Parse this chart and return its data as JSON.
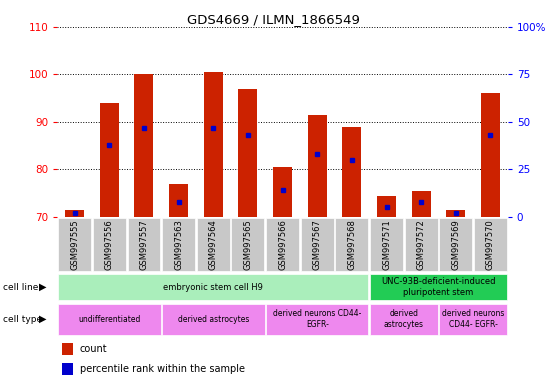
{
  "title": "GDS4669 / ILMN_1866549",
  "samples": [
    "GSM997555",
    "GSM997556",
    "GSM997557",
    "GSM997563",
    "GSM997564",
    "GSM997565",
    "GSM997566",
    "GSM997567",
    "GSM997568",
    "GSM997571",
    "GSM997572",
    "GSM997569",
    "GSM997570"
  ],
  "count_values": [
    71.5,
    94.0,
    100.0,
    77.0,
    100.5,
    97.0,
    80.5,
    91.5,
    89.0,
    74.5,
    75.5,
    71.5,
    96.0
  ],
  "percentile_values": [
    2.0,
    38.0,
    47.0,
    8.0,
    47.0,
    43.0,
    14.0,
    33.0,
    30.0,
    5.0,
    8.0,
    2.0,
    43.0
  ],
  "ylim_left": [
    70,
    110
  ],
  "ylim_right": [
    0,
    100
  ],
  "yticks_left": [
    70,
    80,
    90,
    100,
    110
  ],
  "yticks_right": [
    0,
    25,
    50,
    75,
    100
  ],
  "ytick_labels_right": [
    "0",
    "25",
    "50",
    "75",
    "100%"
  ],
  "bar_color": "#cc2200",
  "dot_color": "#0000cc",
  "bar_width": 0.55,
  "cell_line_groups": [
    {
      "label": "embryonic stem cell H9",
      "start": 0,
      "end": 9,
      "color": "#aaeebb"
    },
    {
      "label": "UNC-93B-deficient-induced\npluripotent stem",
      "start": 9,
      "end": 13,
      "color": "#22cc55"
    }
  ],
  "cell_type_groups": [
    {
      "label": "undifferentiated",
      "start": 0,
      "end": 3,
      "color": "#ee88ee"
    },
    {
      "label": "derived astrocytes",
      "start": 3,
      "end": 6,
      "color": "#ee88ee"
    },
    {
      "label": "derived neurons CD44-\nEGFR-",
      "start": 6,
      "end": 9,
      "color": "#ee88ee"
    },
    {
      "label": "derived\nastrocytes",
      "start": 9,
      "end": 11,
      "color": "#ee88ee"
    },
    {
      "label": "derived neurons\nCD44- EGFR-",
      "start": 11,
      "end": 13,
      "color": "#ee88ee"
    }
  ],
  "tick_bg": "#c8c8c8"
}
